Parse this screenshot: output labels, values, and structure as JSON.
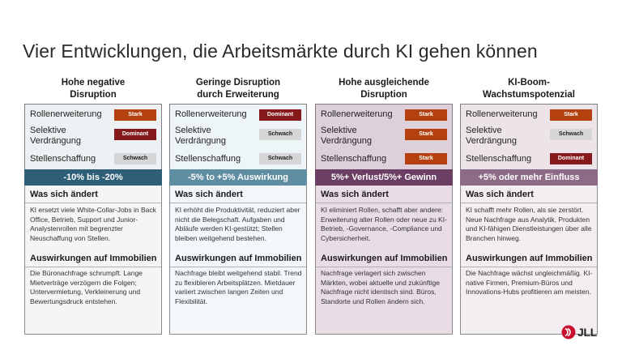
{
  "title": "Vier Entwicklungen, die Arbeitsmärkte durch KI gehen können",
  "colors": {
    "stark": "#b4410f",
    "dominant": "#861a1a",
    "schwach": "#d6d6d6"
  },
  "role_labels": {
    "rollenerweiterung": "Rollenerweiterung",
    "selektive_1": "Selektive",
    "selektive_2": "Verdrängung",
    "stellenschaffung": "Stellenschaffung"
  },
  "section_titles": {
    "change": "Was sich ändert",
    "impact": "Auswirkungen auf Immobilien"
  },
  "columns": [
    {
      "head_1": "Hohe negative",
      "head_2": "Disruption",
      "roles": [
        "Stark",
        "Dominant",
        "Schwach"
      ],
      "bar": "-10% bis -20%",
      "bar_color": "#2f5f78",
      "change_text": "KI ersetzt viele White-Collar-Jobs in Back Office, Betrieb, Support und Junior-Analystenrollen mit begrenzter Neuschaffung von Stellen.",
      "impact_text": "Die Büronachfrage schrumpft. Lange Mietverträge verzögern die Folgen; Untervermietung, Verkleinerung und Bewertungsdruck entstehen."
    },
    {
      "head_1": "Geringe Disruption",
      "head_2": "durch Erweiterung",
      "roles": [
        "Dominant",
        "Schwach",
        "Schwach"
      ],
      "bar": "-5% to +5% Auswirkung",
      "bar_color": "#5f8ea3",
      "change_text": "KI erhöht die Produktivität, reduziert aber nicht die Belegschaft. Aufgaben und Abläufe werden KI-gestützt; Stellen bleiben weitgehend bestehen.",
      "impact_text": "Nachfrage bleibt weitgehend stabil. Trend zu flexibleren Arbeitsplätzen. Mietdauer variiert zwischen langen Zeiten und Flexibilität."
    },
    {
      "head_1": "Hohe ausgleichende",
      "head_2": "Disruption",
      "roles": [
        "Stark",
        "Stark",
        "Stark"
      ],
      "bar": "5%+ Verlust/5%+ Gewinn",
      "bar_color": "#6b3f63",
      "change_text": "KI eliminiert Rollen, schafft aber andere: Erweiterung alter Rollen oder neue zu KI-Betrieb, -Governance, -Compliance und Cybersicherheit.",
      "impact_text": "Nachfrage verlagert sich zwischen Märkten, wobei aktuelle und zukünftige Nachfrage nicht identisch sind. Büros, Standorte und Rollen ändern sich."
    },
    {
      "head_1": "KI-Boom-",
      "head_2": "Wachstumspotenzial",
      "roles": [
        "Stark",
        "Schwach",
        "Dominant"
      ],
      "bar": "+5% oder mehr Einfluss",
      "bar_color": "#8d6a86",
      "change_text": "KI schafft mehr Rollen, als sie zerstört. Neue Nachfrage aus Analytik, Produkten und KI-fähigen Dienstleistungen über alle Branchen hinweg.",
      "impact_text": "Die Nachfrage wächst ungleichmäßig. KI-native Firmen, Premium-Büros und Innovations-Hubs profitieren am meisten."
    }
  ],
  "logo": {
    "text": "JLL",
    "color": "#c8102e"
  }
}
